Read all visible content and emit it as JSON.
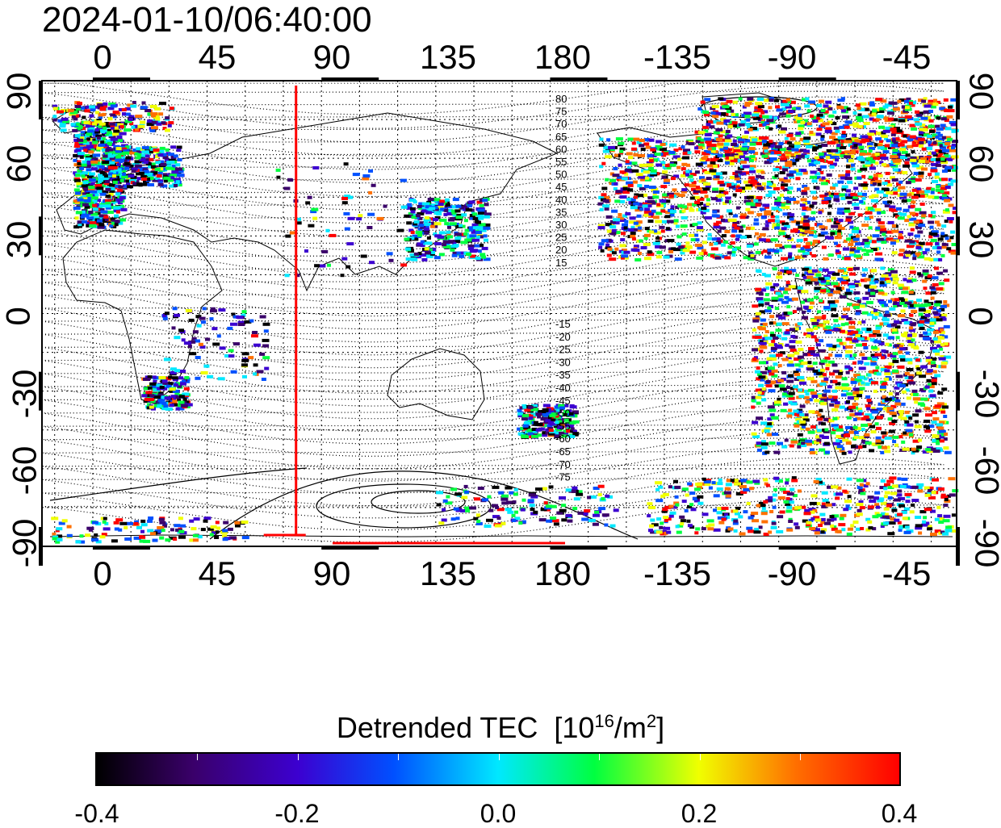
{
  "timestamp": "2024-01-10/06:40:00",
  "map": {
    "lon_ticks": [
      "0",
      "45",
      "90",
      "135",
      "180",
      "-135",
      "-90",
      "-45"
    ],
    "lat_ticks": [
      "90",
      "60",
      "30",
      "0",
      "-30",
      "-60",
      "-90"
    ],
    "contour_labels_north": [
      "80",
      "75",
      "70",
      "65",
      "60",
      "55",
      "50",
      "45",
      "40",
      "35",
      "30",
      "25",
      "20",
      "15"
    ],
    "contour_labels_south": [
      "-15",
      "-20",
      "-25",
      "-30",
      "-35",
      "-40",
      "-45",
      "-50",
      "-55",
      "-60",
      "-65",
      "-70",
      "-75"
    ],
    "terminator_longitude": 80,
    "colors": {
      "terminator": "#ff0000",
      "frame": "#000000"
    }
  },
  "colorbar": {
    "title": "Detrended TEC",
    "unit_base": "[10",
    "unit_exp": "16",
    "unit_mid": "/m",
    "unit_exp2": "2",
    "unit_end": "]",
    "tick_labels": [
      "-0.4",
      "-0.2",
      "0.0",
      "0.2",
      "0.4"
    ],
    "min": -0.4,
    "max": 0.4,
    "stops": [
      "#000000",
      "#3a006a",
      "#3c00d0",
      "#0050ff",
      "#00e8ff",
      "#00ff40",
      "#f0ff00",
      "#ff7000",
      "#ff0000"
    ]
  }
}
